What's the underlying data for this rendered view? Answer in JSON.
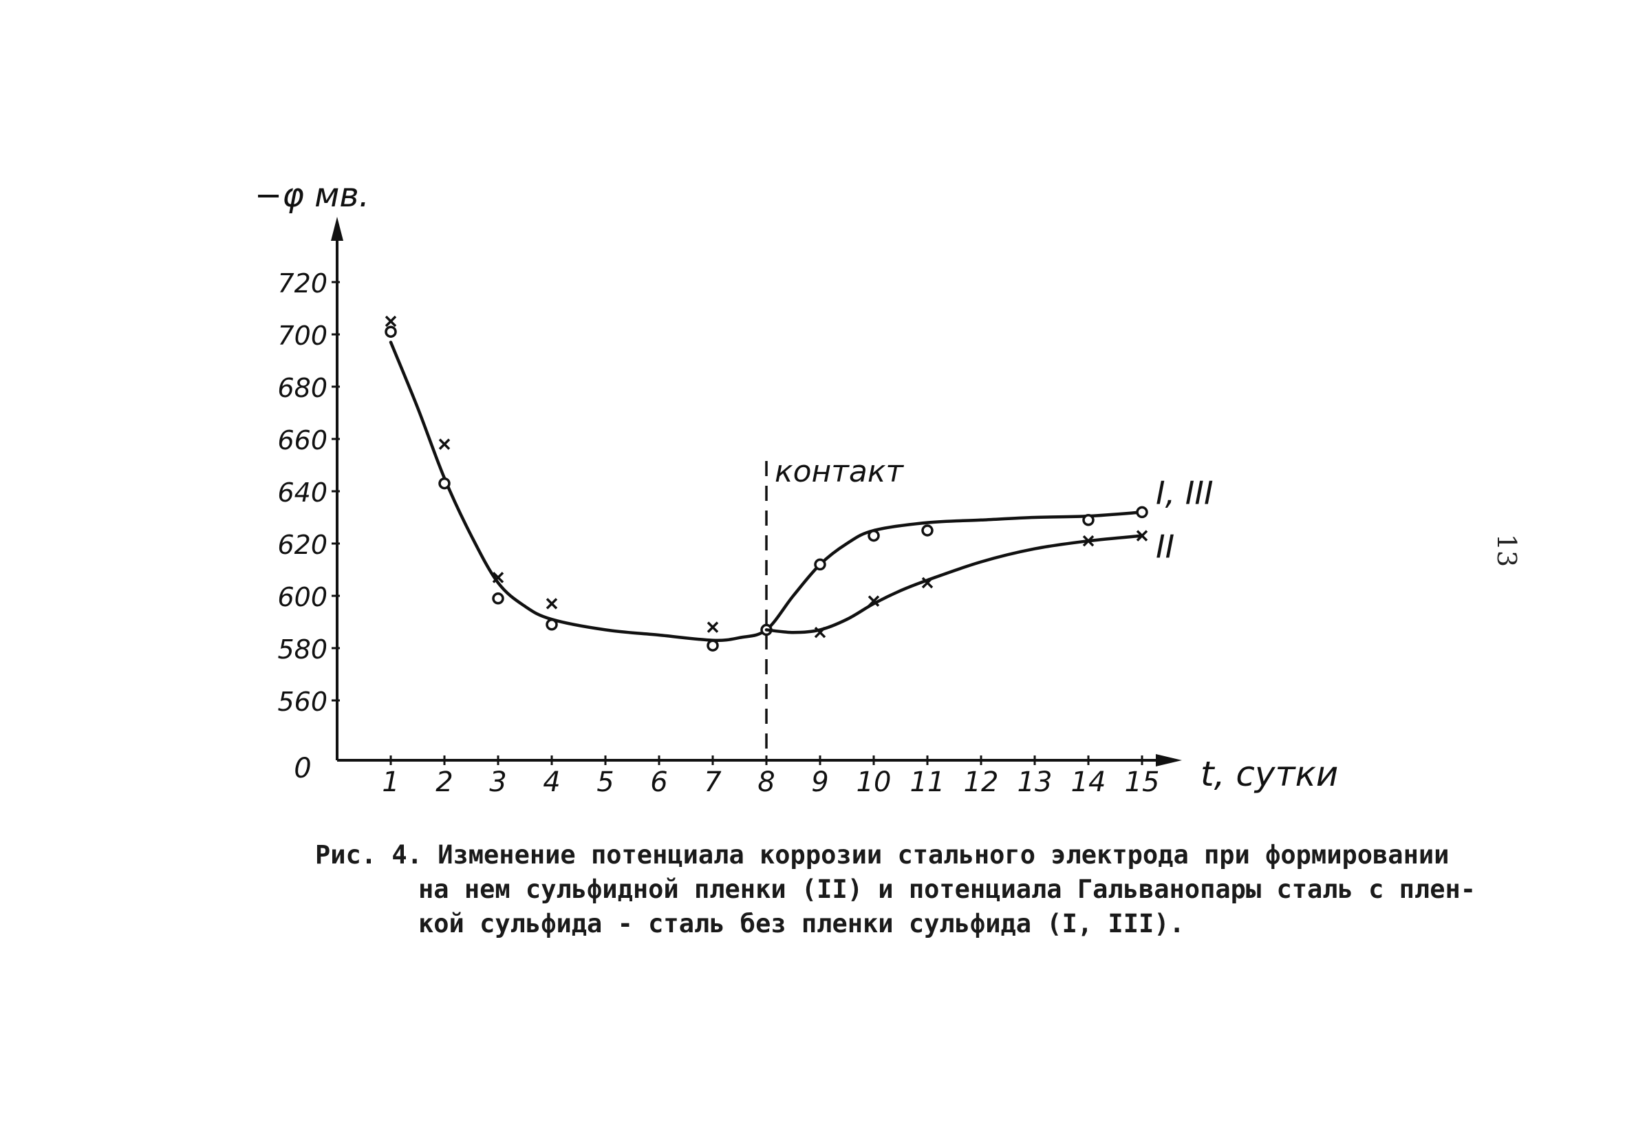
{
  "chart_data": {
    "type": "line",
    "ylabel": "−φ мв.",
    "xlabel": "t, сутки",
    "y_origin_label": "0",
    "y_ticks": [
      720,
      700,
      680,
      660,
      640,
      620,
      600,
      580,
      560
    ],
    "ylim": [
      560,
      730
    ],
    "x_ticks": [
      1,
      2,
      3,
      4,
      5,
      6,
      7,
      8,
      9,
      10,
      11,
      12,
      13,
      14,
      15
    ],
    "xlim": [
      0,
      16
    ],
    "annotation": "контакт",
    "annotation_x": 8,
    "series": [
      {
        "name": "I, III",
        "marker": "circle",
        "points": [
          [
            1,
            701
          ],
          [
            2,
            643
          ],
          [
            3,
            599
          ],
          [
            4,
            589
          ],
          [
            7,
            581
          ],
          [
            8,
            587
          ],
          [
            9,
            612
          ],
          [
            10,
            623
          ],
          [
            11,
            625
          ],
          [
            14,
            629
          ],
          [
            15,
            632
          ]
        ],
        "curve": [
          [
            1,
            697
          ],
          [
            1.5,
            672
          ],
          [
            2,
            645
          ],
          [
            2.5,
            623
          ],
          [
            3,
            605
          ],
          [
            3.5,
            596
          ],
          [
            4,
            591
          ],
          [
            5,
            587
          ],
          [
            6,
            585
          ],
          [
            7,
            583
          ],
          [
            7.5,
            584
          ],
          [
            8,
            587
          ],
          [
            8.5,
            600
          ],
          [
            9,
            612
          ],
          [
            9.5,
            620
          ],
          [
            10,
            625
          ],
          [
            11,
            628
          ],
          [
            12,
            629
          ],
          [
            13,
            630
          ],
          [
            14,
            630.5
          ],
          [
            15,
            632
          ]
        ]
      },
      {
        "name": "II",
        "marker": "cross",
        "points": [
          [
            1,
            705
          ],
          [
            2,
            658
          ],
          [
            3,
            607
          ],
          [
            4,
            597
          ],
          [
            7,
            588
          ],
          [
            9,
            586
          ],
          [
            10,
            598
          ],
          [
            11,
            605
          ],
          [
            14,
            621
          ],
          [
            15,
            623
          ]
        ],
        "curve": [
          [
            8,
            587
          ],
          [
            8.5,
            586
          ],
          [
            9,
            587
          ],
          [
            9.5,
            591
          ],
          [
            10,
            597
          ],
          [
            10.5,
            602
          ],
          [
            11,
            606
          ],
          [
            12,
            613
          ],
          [
            13,
            618
          ],
          [
            14,
            621
          ],
          [
            15,
            623
          ]
        ]
      }
    ]
  },
  "caption": {
    "line1": "Рис. 4. Изменение потенциала коррозии стального электрода при формировании",
    "line2": "на нем сульфидной пленки (II) и потенциала Гальванопары сталь с плен-",
    "line3": "кой сульфида - сталь без пленки сульфида (I, III)."
  },
  "page_number": "13"
}
